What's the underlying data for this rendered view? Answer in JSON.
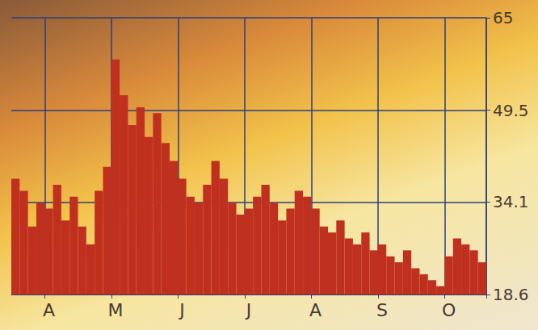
{
  "chart_data": {
    "type": "bar",
    "categories": [
      null,
      null,
      null,
      null,
      "A",
      null,
      null,
      null,
      null,
      null,
      null,
      null,
      "M",
      null,
      null,
      null,
      null,
      null,
      null,
      null,
      "J",
      null,
      null,
      null,
      null,
      null,
      null,
      null,
      "J",
      null,
      null,
      null,
      null,
      null,
      null,
      null,
      "A",
      null,
      null,
      null,
      null,
      null,
      null,
      null,
      "S",
      null,
      null,
      null,
      null,
      null,
      null,
      null,
      "O",
      null,
      null,
      null,
      null
    ],
    "values": [
      38,
      36,
      30,
      34,
      33,
      37,
      31,
      35,
      30,
      27,
      36,
      40,
      58,
      52,
      47,
      50,
      45,
      49,
      44,
      41,
      38,
      35,
      34,
      37,
      41,
      38,
      34,
      32,
      33,
      35,
      37,
      34,
      31,
      33,
      36,
      35,
      33,
      30,
      29,
      31,
      28,
      27,
      29,
      26,
      27,
      25,
      24,
      26,
      23,
      22,
      21,
      20,
      25,
      28,
      27,
      26,
      24
    ],
    "color": "#c0301f",
    "ylim": [
      18.6,
      65
    ],
    "yticks": [
      18.6,
      34.1,
      49.5,
      65
    ],
    "grid": true
  }
}
